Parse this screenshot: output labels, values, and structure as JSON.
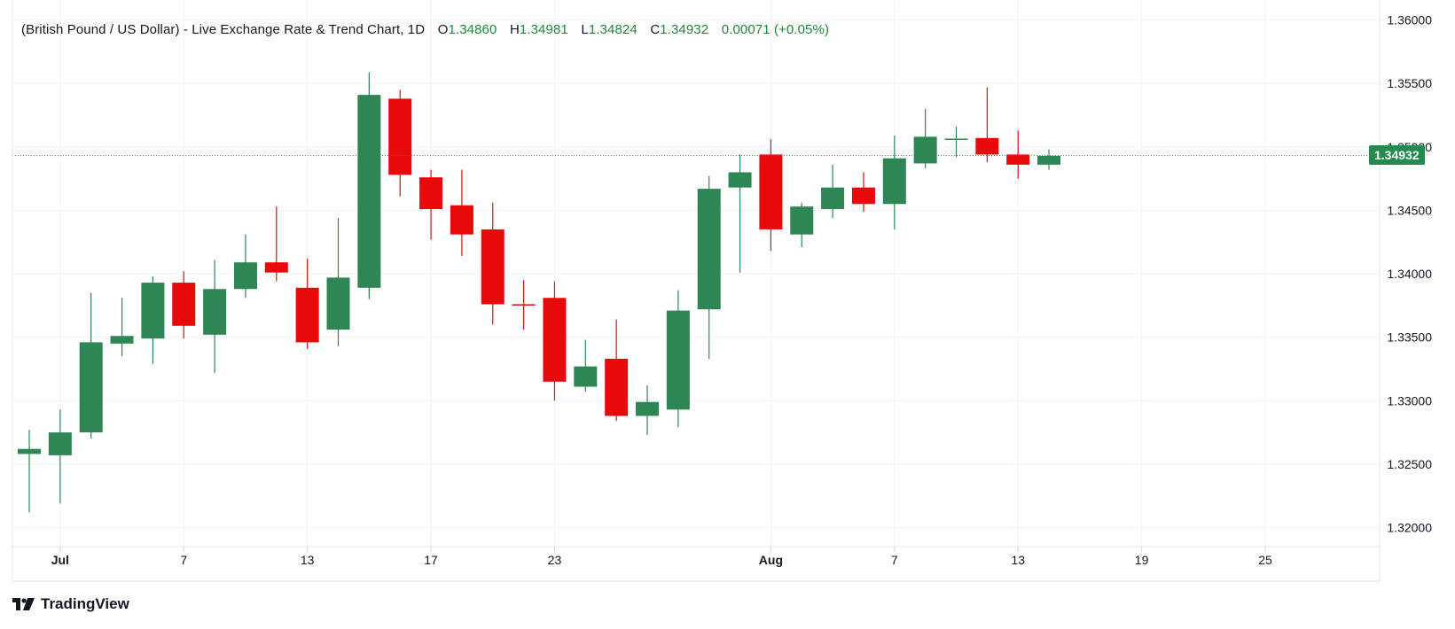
{
  "legend": {
    "title": "(British Pound / US Dollar) - Live Exchange Rate & Trend Chart, 1D",
    "open_label": "O",
    "open": "1.34860",
    "high_label": "H",
    "high": "1.34981",
    "low_label": "L",
    "low": "1.34824",
    "close_label": "C",
    "close": "1.34932",
    "change": "0.00071",
    "change_pct": "(+0.05%)"
  },
  "brand": {
    "name": "TradingView",
    "icon": "tradingview-logo-icon"
  },
  "colors": {
    "up": "#2d8653",
    "down": "#e8090b",
    "grid": "#f0f3fa",
    "axis_text": "#131722",
    "last_price": "#26894f"
  },
  "chart_data": {
    "type": "candlestick",
    "title": "(British Pound / US Dollar) - Live Exchange Rate & Trend Chart, 1D",
    "ylim": [
      1.3185,
      1.3606
    ],
    "grid": true,
    "y_ticks": [
      "1.36000",
      "1.35500",
      "1.35000",
      "1.34500",
      "1.34000",
      "1.33500",
      "1.33000",
      "1.32500",
      "1.32000"
    ],
    "x_ticks": [
      {
        "label": "Jul",
        "bar": 1,
        "bold": true
      },
      {
        "label": "7",
        "bar": 5
      },
      {
        "label": "13",
        "bar": 9
      },
      {
        "label": "17",
        "bar": 13
      },
      {
        "label": "23",
        "bar": 17
      },
      {
        "label": "Aug",
        "bar": 24,
        "bold": true
      },
      {
        "label": "7",
        "bar": 28
      },
      {
        "label": "13",
        "bar": 32
      },
      {
        "label": "19",
        "bar": 36
      },
      {
        "label": "25",
        "bar": 40
      }
    ],
    "last_price": "1.34932",
    "candles": [
      {
        "o": 1.3258,
        "h": 1.3277,
        "l": 1.3212,
        "c": 1.3262
      },
      {
        "o": 1.3257,
        "h": 1.3293,
        "l": 1.3219,
        "c": 1.3275
      },
      {
        "o": 1.3275,
        "h": 1.3385,
        "l": 1.327,
        "c": 1.3346
      },
      {
        "o": 1.3345,
        "h": 1.3381,
        "l": 1.3335,
        "c": 1.3351
      },
      {
        "o": 1.3349,
        "h": 1.3398,
        "l": 1.3329,
        "c": 1.3393
      },
      {
        "o": 1.3393,
        "h": 1.3402,
        "l": 1.3349,
        "c": 1.3359
      },
      {
        "o": 1.3352,
        "h": 1.3411,
        "l": 1.3322,
        "c": 1.3388
      },
      {
        "o": 1.3388,
        "h": 1.3431,
        "l": 1.3381,
        "c": 1.3409
      },
      {
        "o": 1.3409,
        "h": 1.3453,
        "l": 1.3394,
        "c": 1.3401
      },
      {
        "o": 1.3389,
        "h": 1.3412,
        "l": 1.3341,
        "c": 1.3346
      },
      {
        "o": 1.3356,
        "h": 1.3444,
        "l": 1.3343,
        "c": 1.3397
      },
      {
        "o": 1.3389,
        "h": 1.3559,
        "l": 1.338,
        "c": 1.3541
      },
      {
        "o": 1.3538,
        "h": 1.3545,
        "l": 1.3461,
        "c": 1.3478
      },
      {
        "o": 1.3476,
        "h": 1.3482,
        "l": 1.3427,
        "c": 1.3451
      },
      {
        "o": 1.3454,
        "h": 1.3482,
        "l": 1.3414,
        "c": 1.3431
      },
      {
        "o": 1.3435,
        "h": 1.3456,
        "l": 1.336,
        "c": 1.3376
      },
      {
        "o": 1.3376,
        "h": 1.3395,
        "l": 1.3356,
        "c": 1.3375
      },
      {
        "o": 1.3381,
        "h": 1.3394,
        "l": 1.33,
        "c": 1.3315
      },
      {
        "o": 1.3311,
        "h": 1.3348,
        "l": 1.3307,
        "c": 1.3327
      },
      {
        "o": 1.3333,
        "h": 1.3364,
        "l": 1.3284,
        "c": 1.3288
      },
      {
        "o": 1.3288,
        "h": 1.3312,
        "l": 1.3273,
        "c": 1.3299
      },
      {
        "o": 1.3293,
        "h": 1.3387,
        "l": 1.3279,
        "c": 1.3371
      },
      {
        "o": 1.3372,
        "h": 1.3477,
        "l": 1.3333,
        "c": 1.3467
      },
      {
        "o": 1.3468,
        "h": 1.3494,
        "l": 1.3401,
        "c": 1.348
      },
      {
        "o": 1.3494,
        "h": 1.3506,
        "l": 1.3418,
        "c": 1.3435
      },
      {
        "o": 1.3431,
        "h": 1.3456,
        "l": 1.3421,
        "c": 1.3453
      },
      {
        "o": 1.3451,
        "h": 1.3486,
        "l": 1.3444,
        "c": 1.3468
      },
      {
        "o": 1.3468,
        "h": 1.348,
        "l": 1.3449,
        "c": 1.3455
      },
      {
        "o": 1.3455,
        "h": 1.3509,
        "l": 1.3435,
        "c": 1.3491
      },
      {
        "o": 1.3487,
        "h": 1.353,
        "l": 1.3483,
        "c": 1.3508
      },
      {
        "o": 1.3506,
        "h": 1.3516,
        "l": 1.3492,
        "c": 1.3506
      },
      {
        "o": 1.3507,
        "h": 1.3547,
        "l": 1.3488,
        "c": 1.3494
      },
      {
        "o": 1.3494,
        "h": 1.3513,
        "l": 1.3475,
        "c": 1.3486
      },
      {
        "o": 1.3486,
        "h": 1.3498,
        "l": 1.3482,
        "c": 1.3493
      }
    ]
  }
}
